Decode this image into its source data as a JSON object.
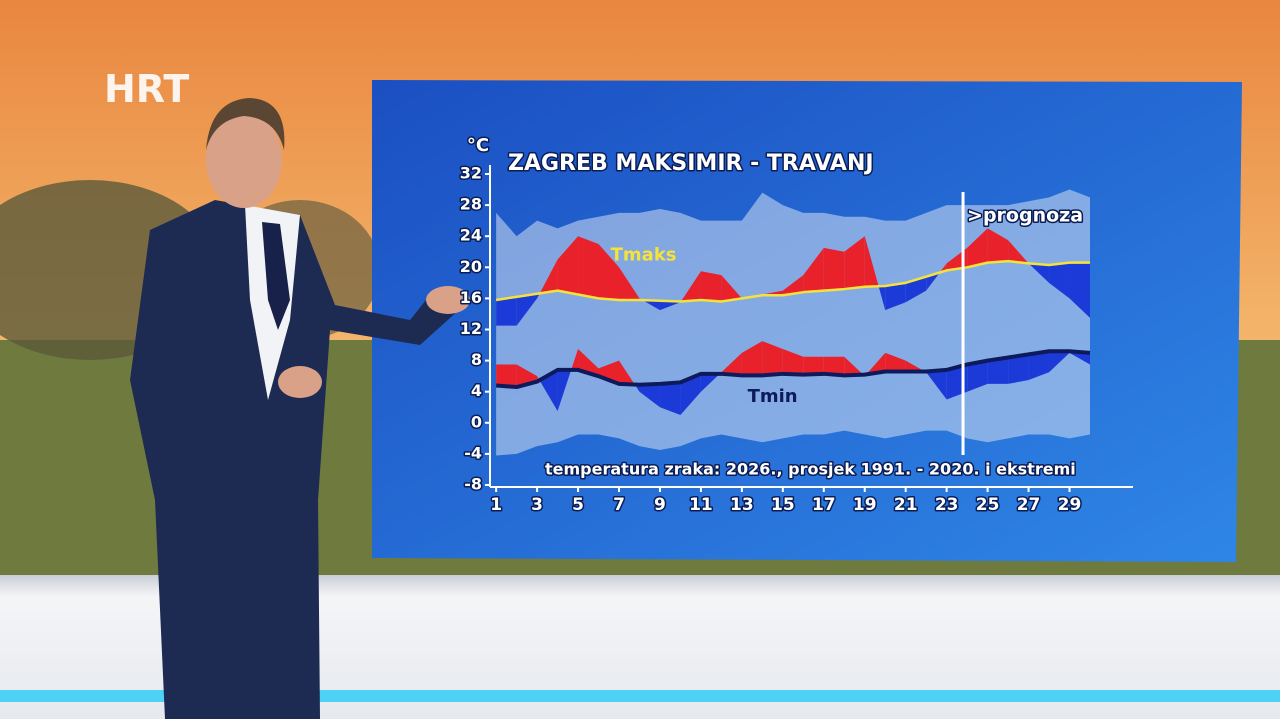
{
  "header": {
    "logo": "HRT"
  },
  "chart_data": {
    "type": "climate-band",
    "title": "ZAGREB MAKSIMIR - TRAVANJ",
    "y_unit": "°C",
    "subtitle": "temperatura zraka: 2026., prosjek 1991. - 2020. i ekstremi",
    "forecast_label": ">prognoza",
    "forecast_start": 23.8,
    "x": [
      1,
      2,
      3,
      4,
      5,
      6,
      7,
      8,
      9,
      10,
      11,
      12,
      13,
      14,
      15,
      16,
      17,
      18,
      19,
      20,
      21,
      22,
      23,
      24,
      25,
      26,
      27,
      28,
      29,
      30
    ],
    "xlim": [
      0.7,
      32.1
    ],
    "xticks": [
      1,
      3,
      5,
      7,
      9,
      11,
      13,
      15,
      17,
      19,
      21,
      23,
      25,
      27,
      29
    ],
    "ylim": [
      -8,
      32
    ],
    "yticks": [
      -8,
      -4,
      0,
      4,
      8,
      12,
      16,
      20,
      24,
      28,
      32
    ],
    "extreme_max": [
      27,
      24,
      26,
      25,
      26,
      26.5,
      27,
      27,
      27.5,
      27,
      26,
      26,
      26,
      29.6,
      28,
      27,
      27,
      26.5,
      26.5,
      26,
      26,
      27,
      28,
      28,
      28,
      28,
      28.5,
      29,
      30,
      29
    ],
    "extreme_min": [
      -4.2,
      -4,
      -3,
      -2.5,
      -1.5,
      -1.5,
      -2,
      -3,
      -3.5,
      -3,
      -2,
      -1.5,
      -2,
      -2.5,
      -2,
      -1.5,
      -1.5,
      -1,
      -1.5,
      -2,
      -1.5,
      -1,
      -1,
      -2,
      -2.5,
      -2,
      -1.5,
      -1.5,
      -2,
      -1.5
    ],
    "band_color": "#c5d6ee",
    "series": [
      {
        "name": "Tmaks",
        "values": [
          12.5,
          12.5,
          16,
          21,
          24,
          23,
          20,
          16,
          14.5,
          15.5,
          19.5,
          19,
          16,
          16.5,
          17,
          19,
          22.5,
          22,
          24,
          14.5,
          15.5,
          17,
          20.5,
          22.5,
          25,
          23.5,
          20.5,
          18,
          16,
          13.5
        ],
        "average": [
          15.8,
          16.2,
          16.6,
          17,
          16.5,
          16,
          15.8,
          15.8,
          15.7,
          15.6,
          15.8,
          15.6,
          16,
          16.4,
          16.4,
          16.8,
          17,
          17.2,
          17.5,
          17.6,
          18,
          18.8,
          19.6,
          20,
          20.6,
          20.8,
          20.5,
          20.3,
          20.6,
          20.6
        ],
        "average_color": "#f5e23a",
        "above_color": "#e8212b",
        "below_color": "#1c3ad8"
      },
      {
        "name": "Tmin",
        "values": [
          7.5,
          7.5,
          6,
          1.5,
          9.5,
          7,
          8,
          4,
          2,
          1,
          4,
          6.5,
          9,
          10.5,
          9.5,
          8.5,
          8.5,
          8.5,
          6,
          9,
          8,
          6.5,
          3,
          4,
          5,
          5,
          5.5,
          6.5,
          9,
          7.5
        ],
        "average": [
          4.8,
          4.6,
          5.3,
          6.8,
          6.8,
          6,
          5,
          4.9,
          5,
          5.2,
          6.3,
          6.3,
          6.1,
          6.1,
          6.3,
          6.2,
          6.3,
          6.1,
          6.2,
          6.6,
          6.6,
          6.6,
          6.8,
          7.5,
          8,
          8.4,
          8.8,
          9.2,
          9.2,
          9
        ],
        "average_color": "#0d1a5c",
        "above_color": "#e8212b",
        "below_color": "#1c3ad8"
      }
    ]
  }
}
